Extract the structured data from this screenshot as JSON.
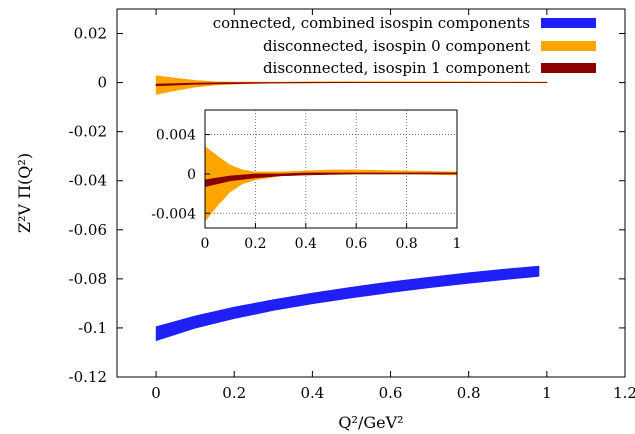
{
  "chart_data": {
    "type": "area",
    "xlabel": "Q²/GeV²",
    "ylabel": "Z²V Π(Q²)",
    "xlim": [
      -0.1,
      1.2
    ],
    "ylim": [
      -0.12,
      0.03
    ],
    "xticks": [
      "0",
      "0.2",
      "0.4",
      "0.6",
      "0.8",
      "1",
      "1.2"
    ],
    "yticks": [
      "0.02",
      "0",
      "-0.02",
      "-0.04",
      "-0.06",
      "-0.08",
      "-0.1",
      "-0.12"
    ],
    "legend_position": "top-right",
    "series": [
      {
        "name": "connected, combined isospin components",
        "color": "#1f1ff7",
        "x": [
          0.0,
          0.1,
          0.2,
          0.3,
          0.4,
          0.5,
          0.6,
          0.7,
          0.8,
          0.9,
          0.98
        ],
        "lower": [
          -0.1052,
          -0.1001,
          -0.0962,
          -0.0929,
          -0.0902,
          -0.0878,
          -0.0856,
          -0.0836,
          -0.0818,
          -0.0802,
          -0.079
        ],
        "upper": [
          -0.0995,
          -0.0951,
          -0.0915,
          -0.0885,
          -0.0858,
          -0.0834,
          -0.0812,
          -0.0793,
          -0.0775,
          -0.0759,
          -0.0748
        ]
      },
      {
        "name": "disconnected, isospin 0 component",
        "color": "#ffa500",
        "x": [
          0.0,
          0.05,
          0.1,
          0.15,
          0.2,
          0.3,
          0.4,
          0.5,
          0.6,
          0.8,
          1.0
        ],
        "lower": [
          -0.0048,
          -0.0032,
          -0.0018,
          -0.001,
          -0.0006,
          -0.0002,
          -0.0001,
          0.0,
          0.0,
          0.0,
          -0.0001
        ],
        "upper": [
          0.0028,
          0.0018,
          0.0009,
          0.0004,
          0.0002,
          0.0002,
          0.0003,
          0.0004,
          0.0004,
          0.0003,
          0.0002
        ]
      },
      {
        "name": "disconnected, isospin 1 component",
        "color": "#8b0000",
        "x": [
          0.0,
          0.1,
          0.2,
          0.3,
          0.4,
          0.6,
          0.8,
          1.0
        ],
        "lower": [
          -0.0013,
          -0.0007,
          -0.0004,
          -0.0002,
          -0.0001,
          0.0,
          0.0,
          0.0
        ],
        "upper": [
          -0.0006,
          -0.0002,
          0.0,
          0.0,
          0.0001,
          0.0001,
          0.0001,
          0.0001
        ]
      }
    ],
    "inset": {
      "xlim": [
        0,
        1
      ],
      "ylim": [
        -0.0055,
        0.0065
      ],
      "xticks": [
        "0",
        "0.2",
        "0.4",
        "0.6",
        "0.8",
        "1"
      ],
      "yticks": [
        "0.004",
        "0",
        "-0.004"
      ],
      "grid": true
    }
  }
}
